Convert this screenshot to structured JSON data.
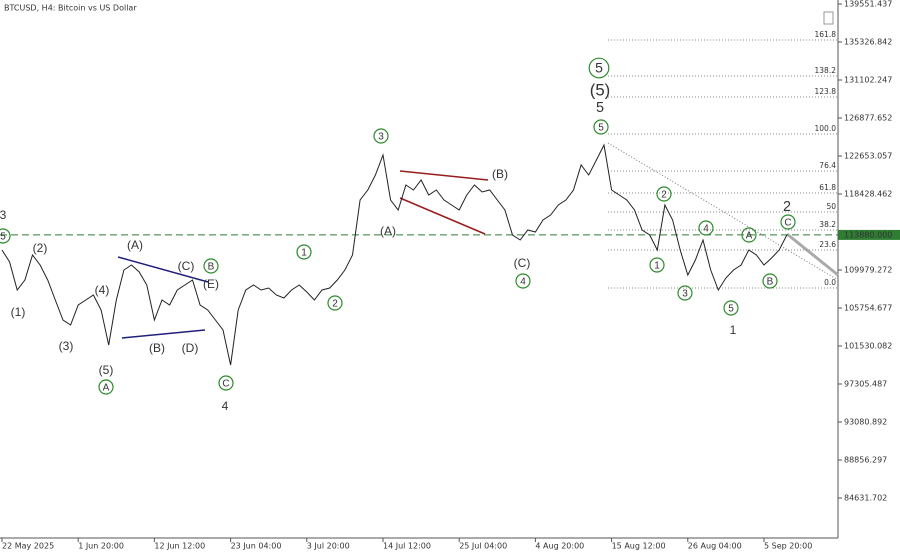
{
  "chart_data": {
    "type": "line",
    "title": "BTCUSD, H4:  Bitcoin vs US Dollar",
    "color": "#222222",
    "categories": [
      "22 May 2025",
      null,
      null,
      null,
      null,
      null,
      null,
      null,
      null,
      null,
      "1 Jun 20:00",
      null,
      null,
      null,
      null,
      null,
      null,
      null,
      null,
      null,
      "12 Jun 12:00",
      null,
      null,
      null,
      null,
      null,
      null,
      null,
      null,
      null,
      "23 Jun 04:00",
      null,
      null,
      null,
      null,
      null,
      null,
      null,
      null,
      null,
      "3 Jul 20:00",
      null,
      null,
      null,
      null,
      null,
      null,
      null,
      null,
      null,
      "14 Jul 12:00",
      null,
      null,
      null,
      null,
      null,
      null,
      null,
      null,
      null,
      "25 Jul 04:00",
      null,
      null,
      null,
      null,
      null,
      null,
      null,
      null,
      null,
      "4 Aug 20:00",
      null,
      null,
      null,
      null,
      null,
      null,
      null,
      null,
      null,
      "15 Aug 12:00",
      null,
      null,
      null,
      null,
      null,
      null,
      null,
      null,
      null,
      "26 Aug 04:00",
      null,
      null,
      null,
      null,
      null,
      null,
      null,
      null,
      null,
      "5 Sep 20:00",
      null,
      null,
      null
    ],
    "values": [
      112203,
      110869,
      107757,
      108868,
      111648,
      110536,
      108868,
      106645,
      104422,
      103866,
      106089,
      106645,
      107201,
      105533,
      101642,
      106645,
      109980,
      110536,
      109758,
      108313,
      104422,
      106645,
      106089,
      107757,
      108313,
      108868,
      106089,
      105533,
      104422,
      103310,
      99419,
      105533,
      107757,
      108313,
      107757,
      107979,
      107201,
      106867,
      107757,
      108313,
      107534,
      106645,
      107757,
      107979,
      108868,
      109980,
      111648,
      117762,
      118874,
      120541,
      122765,
      117762,
      116650,
      119430,
      118874,
      119985,
      118318,
      118874,
      117762,
      117206,
      116650,
      118318,
      119430,
      118651,
      118874,
      117762,
      116650,
      113871,
      113315,
      114427,
      114205,
      115539,
      116094,
      117206,
      117762,
      118874,
      121653,
      120541,
      122209,
      123876,
      118874,
      118318,
      117762,
      116650,
      114427,
      113871,
      112203,
      117206,
      115539,
      112203,
      109424,
      111092,
      113315,
      109980,
      107757,
      109091,
      109980,
      110536,
      112203,
      111648,
      110536,
      111314,
      112203,
      113880
    ],
    "ylim": [
      80185,
      139996
    ],
    "yticks": [
      139551.437,
      135326.842,
      131102.247,
      126877.652,
      122653.057,
      118428.462,
      109979.272,
      105754.677,
      101530.082,
      97305.487,
      93080.892,
      88856.297,
      84631.702
    ],
    "price_line": {
      "value": 113880,
      "label": "113880.000",
      "color": "#2e7d32"
    },
    "fib_levels": [
      {
        "label": "161.8",
        "price": 135549
      },
      {
        "label": "138.2",
        "price": 131547
      },
      {
        "label": "123.8",
        "price": 129213
      },
      {
        "label": "100.0",
        "price": 125099
      },
      {
        "label": "76.4",
        "price": 120986
      },
      {
        "label": "61.8",
        "price": 118540
      },
      {
        "label": "50",
        "price": 116428
      },
      {
        "label": "38.2",
        "price": 114427
      },
      {
        "label": "23.6",
        "price": 112203
      },
      {
        "label": "0.0",
        "price": 107979
      }
    ],
    "annotations": [
      {
        "text": "3",
        "color": "#8b1a1a",
        "circled": false
      },
      {
        "text": "5",
        "color": "#2e8b2e",
        "circled": true
      },
      {
        "text": "(2)",
        "color": "#1f1f7a",
        "circled": false
      },
      {
        "text": "(1)",
        "color": "#1f1f7a",
        "circled": false
      },
      {
        "text": "(3)",
        "color": "#1f1f7a",
        "circled": false
      },
      {
        "text": "(4)",
        "color": "#1f1f7a",
        "circled": false
      },
      {
        "text": "(5)",
        "color": "#1f1f7a",
        "circled": false
      },
      {
        "text": "A",
        "color": "#2e8b2e",
        "circled": true
      },
      {
        "text": "(A)",
        "color": "#1f1f7a",
        "circled": false
      },
      {
        "text": "(B)",
        "color": "#1f1f7a",
        "circled": false
      },
      {
        "text": "(C)",
        "color": "#1f1f7a",
        "circled": false
      },
      {
        "text": "(D)",
        "color": "#1f1f7a",
        "circled": false
      },
      {
        "text": "(E)",
        "color": "#1f1f7a",
        "circled": false
      },
      {
        "text": "B",
        "color": "#2e8b2e",
        "circled": true
      },
      {
        "text": "C",
        "color": "#2e8b2e",
        "circled": true
      },
      {
        "text": "4",
        "color": "#8b1a1a",
        "circled": false
      },
      {
        "text": "1",
        "color": "#2e8b2e",
        "circled": true
      },
      {
        "text": "2",
        "color": "#2e8b2e",
        "circled": true
      },
      {
        "text": "3",
        "color": "#2e8b2e",
        "circled": true
      },
      {
        "text": "(A)",
        "color": "#1f1f7a",
        "circled": false
      },
      {
        "text": "(B)",
        "color": "#1f1f7a",
        "circled": false
      },
      {
        "text": "(C)",
        "color": "#1f1f7a",
        "circled": false
      },
      {
        "text": "4",
        "color": "#2e8b2e",
        "circled": true
      },
      {
        "text": "5",
        "color": "#2e8b2e",
        "circled": true
      },
      {
        "text": "(5)",
        "color": "#1f1f7a",
        "circled": false
      },
      {
        "text": "5",
        "color": "#8b1a1a",
        "circled": false
      },
      {
        "text": "5",
        "color": "#2e8b2e",
        "circled": true
      },
      {
        "text": "2",
        "color": "#2e8b2e",
        "circled": true
      },
      {
        "text": "4",
        "color": "#2e8b2e",
        "circled": true
      },
      {
        "text": "1",
        "color": "#2e8b2e",
        "circled": true
      },
      {
        "text": "3",
        "color": "#2e8b2e",
        "circled": true
      },
      {
        "text": "5",
        "color": "#2e8b2e",
        "circled": true
      },
      {
        "text": "1",
        "color": "#8b1a1a",
        "circled": false
      },
      {
        "text": "A",
        "color": "#2e8b2e",
        "circled": true
      },
      {
        "text": "B",
        "color": "#2e8b2e",
        "circled": true
      },
      {
        "text": "C",
        "color": "#2e8b2e",
        "circled": true
      },
      {
        "text": "2",
        "color": "#8b1a1a",
        "circled": false
      }
    ]
  }
}
